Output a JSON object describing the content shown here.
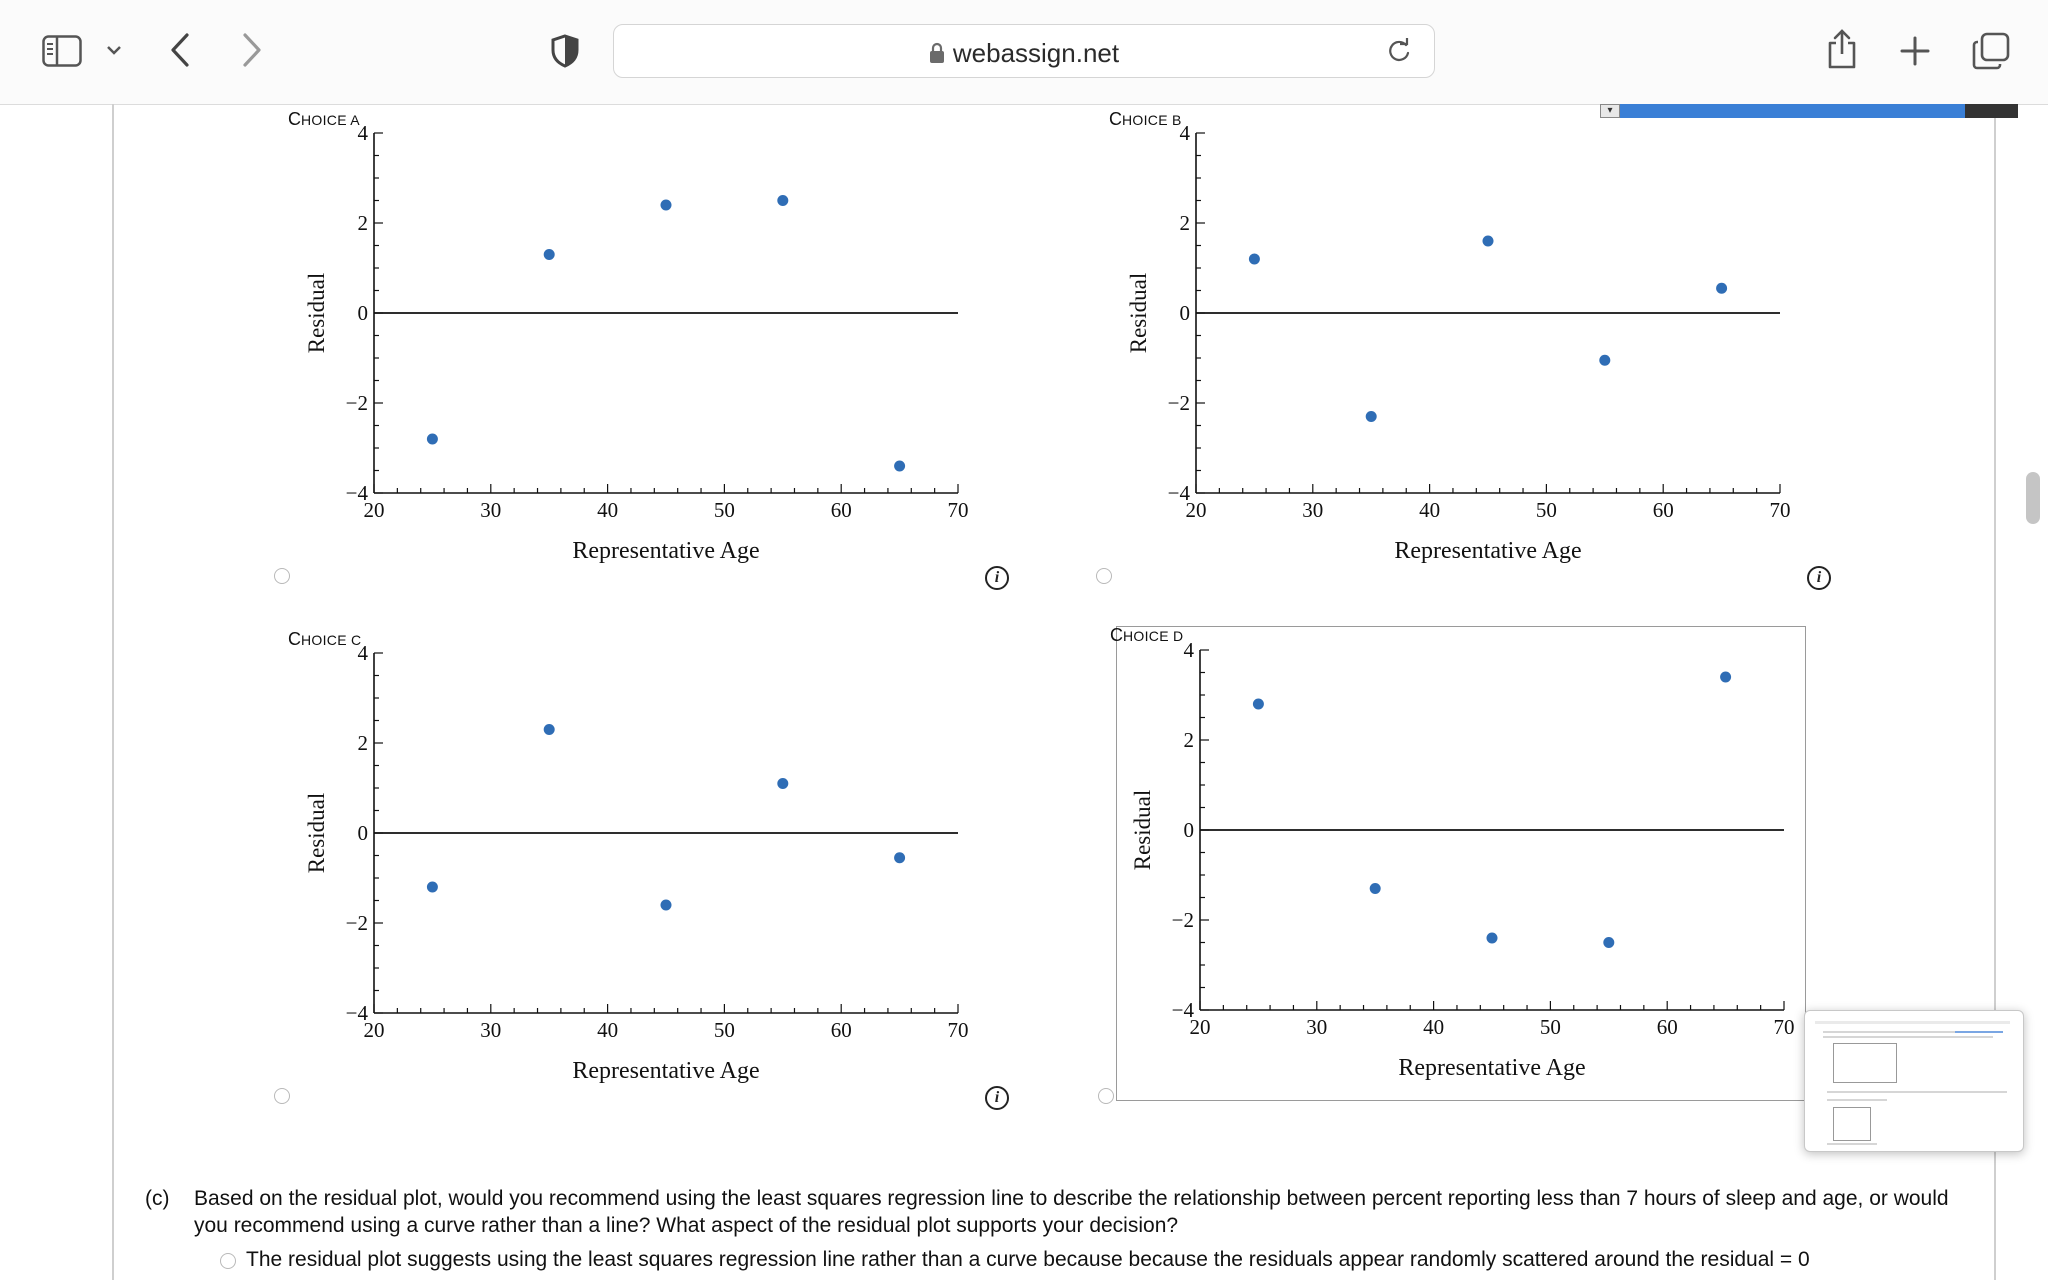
{
  "browser": {
    "url": "webassign.net",
    "icons": [
      "sidebar-icon",
      "chevron-down-icon",
      "back-icon",
      "forward-icon",
      "shield-icon",
      "lock-icon",
      "reload-icon",
      "share-icon",
      "new-tab-icon",
      "tabs-overview-icon"
    ]
  },
  "choices": [
    {
      "id": "A",
      "label_first": "C",
      "label_rest": "HOICE A"
    },
    {
      "id": "B",
      "label_first": "C",
      "label_rest": "HOICE B"
    },
    {
      "id": "C",
      "label_first": "C",
      "label_rest": "HOICE C"
    },
    {
      "id": "D",
      "label_first": "C",
      "label_rest": "HOICE D"
    }
  ],
  "chart_data": [
    {
      "type": "scatter",
      "title": "Choice A",
      "xlabel": "Representative Age",
      "ylabel": "Residual",
      "xlim": [
        20,
        70
      ],
      "ylim": [
        -4,
        4
      ],
      "xticks": [
        20,
        30,
        40,
        50,
        60,
        70
      ],
      "yticks": [
        "4",
        "2",
        "0",
        "−2",
        "−4"
      ],
      "x": [
        25,
        35,
        45,
        55,
        65
      ],
      "y": [
        -2.8,
        1.3,
        2.4,
        2.5,
        -3.4
      ]
    },
    {
      "type": "scatter",
      "title": "Choice B",
      "xlabel": "Representative Age",
      "ylabel": "Residual",
      "xlim": [
        20,
        70
      ],
      "ylim": [
        -4,
        4
      ],
      "xticks": [
        20,
        30,
        40,
        50,
        60,
        70
      ],
      "yticks": [
        "4",
        "2",
        "0",
        "−2",
        "−4"
      ],
      "x": [
        25,
        35,
        45,
        55,
        65
      ],
      "y": [
        1.2,
        -2.3,
        1.6,
        -1.05,
        0.55
      ]
    },
    {
      "type": "scatter",
      "title": "Choice C",
      "xlabel": "Representative Age",
      "ylabel": "Residual",
      "xlim": [
        20,
        70
      ],
      "ylim": [
        -4,
        4
      ],
      "xticks": [
        20,
        30,
        40,
        50,
        60,
        70
      ],
      "yticks": [
        "4",
        "2",
        "0",
        "−2",
        "−4"
      ],
      "x": [
        25,
        35,
        45,
        55,
        65
      ],
      "y": [
        -1.2,
        2.3,
        -1.6,
        1.1,
        -0.55
      ]
    },
    {
      "type": "scatter",
      "title": "Choice D",
      "xlabel": "Representative Age",
      "ylabel": "Residual",
      "xlim": [
        20,
        70
      ],
      "ylim": [
        -4,
        4
      ],
      "xticks": [
        20,
        30,
        40,
        50,
        60,
        70
      ],
      "yticks": [
        "4",
        "2",
        "0",
        "−2",
        "−4"
      ],
      "x": [
        25,
        35,
        45,
        55,
        65
      ],
      "y": [
        2.8,
        -1.3,
        -2.4,
        -2.5,
        3.4
      ]
    }
  ],
  "question": {
    "label": "(c)",
    "text": "Based on the residual plot, would you recommend using the least squares regression line to describe the relationship between percent reporting less than 7 hours of sleep and age, or would you recommend using a curve rather than a line? What aspect of the residual plot supports your decision?",
    "option1": "The residual plot suggests using the least squares regression line rather than a curve because because the residuals appear randomly scattered around the residual = 0"
  },
  "colors": {
    "point": "#2f6db5",
    "axis": "#111111",
    "accent": "#3a7fd6"
  }
}
